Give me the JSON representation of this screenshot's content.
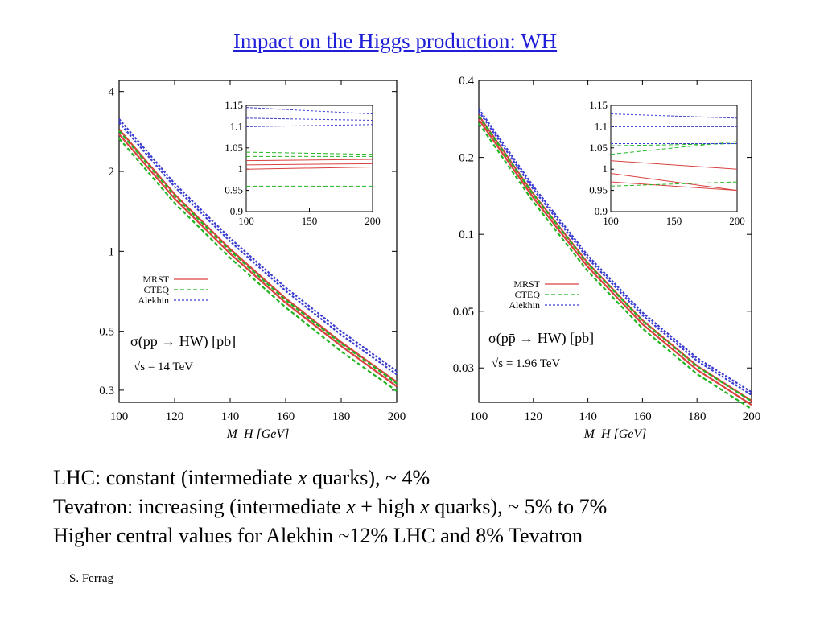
{
  "title": "Impact on the Higgs production: WH",
  "chart_data": [
    {
      "type": "line",
      "xlabel": "M_H [GeV]",
      "xlim": [
        100,
        200
      ],
      "ylim": [
        0.27,
        4.4
      ],
      "yscale": "log",
      "xticks": [
        "100",
        "120",
        "140",
        "160",
        "180",
        "200"
      ],
      "yticks": [
        {
          "value": 0.3,
          "label": "0.3"
        },
        {
          "value": 0.5,
          "label": "0.5"
        },
        {
          "value": 1,
          "label": "1"
        },
        {
          "value": 2,
          "label": "2"
        },
        {
          "value": 4,
          "label": "4"
        }
      ],
      "annotation": {
        "process": "σ(pp → HW) [pb]",
        "energy": "√s = 14 TeV"
      },
      "legend_placement": "middle-left",
      "series": [
        {
          "name": "MRST",
          "color": "#d94040",
          "dash": "solid",
          "x": [
            100,
            120,
            140,
            160,
            180,
            200
          ],
          "bands": [
            [
              2.76,
              1.58,
              0.98,
              0.64,
              0.44,
              0.31
            ],
            [
              2.88,
              1.64,
              1.02,
              0.665,
              0.455,
              0.322
            ]
          ]
        },
        {
          "name": "CTEQ",
          "color": "#22b522",
          "dash": "dashed",
          "x": [
            100,
            120,
            140,
            160,
            180,
            200
          ],
          "bands": [
            [
              2.66,
              1.52,
              0.945,
              0.615,
              0.42,
              0.298
            ],
            [
              2.84,
              1.62,
              1.005,
              0.655,
              0.45,
              0.318
            ]
          ]
        },
        {
          "name": "Alekhin",
          "color": "#3b3bd0",
          "dash": "dotted",
          "x": [
            100,
            120,
            140,
            160,
            180,
            200
          ],
          "bands": [
            [
              3.06,
              1.75,
              1.09,
              0.71,
              0.485,
              0.344
            ],
            [
              3.15,
              1.8,
              1.12,
              0.73,
              0.5,
              0.354
            ]
          ]
        }
      ],
      "inset": {
        "xlim": [
          100,
          200
        ],
        "ylim": [
          0.9,
          1.15
        ],
        "xticks": [
          "100",
          "150",
          "200"
        ],
        "yticks": [
          "0.9",
          "0.95",
          "1",
          "1.05",
          "1.1",
          "1.15"
        ],
        "series": [
          {
            "name": "MRST",
            "color": "#d94040",
            "dash": "solid",
            "x": [
              100,
              200
            ],
            "lines": [
              [
                1.02,
                1.023
              ],
              [
                1.0,
                1.005
              ],
              [
                1.01,
                1.013
              ]
            ]
          },
          {
            "name": "CTEQ",
            "color": "#22b522",
            "dash": "dashed",
            "x": [
              100,
              200
            ],
            "lines": [
              [
                1.04,
                1.035
              ],
              [
                0.96,
                0.96
              ],
              [
                1.03,
                1.03
              ]
            ]
          },
          {
            "name": "Alekhin",
            "color": "#3b3bd0",
            "dash": "dotted",
            "x": [
              100,
              200
            ],
            "lines": [
              [
                1.145,
                1.13
              ],
              [
                1.12,
                1.115
              ],
              [
                1.1,
                1.105
              ]
            ]
          }
        ]
      }
    },
    {
      "type": "line",
      "xlabel": "M_H [GeV]",
      "xlim": [
        100,
        200
      ],
      "ylim": [
        0.022,
        0.4
      ],
      "yscale": "log",
      "xticks": [
        "100",
        "120",
        "140",
        "160",
        "180",
        "200"
      ],
      "yticks": [
        {
          "value": 0.03,
          "label": "0.03"
        },
        {
          "value": 0.05,
          "label": "0.05"
        },
        {
          "value": 0.1,
          "label": "0.1"
        },
        {
          "value": 0.2,
          "label": "0.2"
        },
        {
          "value": 0.4,
          "label": "0.4"
        }
      ],
      "annotation": {
        "process": "σ(pp̄ → HW) [pb]",
        "energy": "√s = 1.96 TeV"
      },
      "legend_placement": "middle-left",
      "series": [
        {
          "name": "MRST",
          "color": "#d94040",
          "dash": "solid",
          "x": [
            100,
            120,
            140,
            160,
            180,
            200
          ],
          "bands": [
            [
              0.282,
              0.139,
              0.0745,
              0.0445,
              0.0295,
              0.0215
            ],
            [
              0.292,
              0.144,
              0.0772,
              0.0461,
              0.0306,
              0.0223
            ]
          ]
        },
        {
          "name": "CTEQ",
          "color": "#22b522",
          "dash": "dashed",
          "x": [
            100,
            120,
            140,
            160,
            180,
            200
          ],
          "bands": [
            [
              0.272,
              0.134,
              0.0717,
              0.0428,
              0.0284,
              0.0207
            ],
            [
              0.29,
              0.143,
              0.0766,
              0.0458,
              0.0304,
              0.0222
            ]
          ]
        },
        {
          "name": "Alekhin",
          "color": "#3b3bd0",
          "dash": "dotted",
          "x": [
            100,
            120,
            140,
            160,
            180,
            200
          ],
          "bands": [
            [
              0.303,
              0.15,
              0.0805,
              0.0482,
              0.032,
              0.0235
            ],
            [
              0.31,
              0.154,
              0.0825,
              0.0494,
              0.0328,
              0.0241
            ]
          ]
        }
      ],
      "inset": {
        "xlim": [
          100,
          200
        ],
        "ylim": [
          0.9,
          1.15
        ],
        "xticks": [
          "100",
          "150",
          "200"
        ],
        "yticks": [
          "0.9",
          "0.95",
          "1",
          "1.05",
          "1.1",
          "1.15"
        ],
        "series": [
          {
            "name": "MRST",
            "color": "#d94040",
            "dash": "solid",
            "x": [
              100,
              200
            ],
            "lines": [
              [
                1.02,
                1.0
              ],
              [
                0.99,
                0.95
              ],
              [
                0.97,
                0.95
              ]
            ]
          },
          {
            "name": "CTEQ",
            "color": "#22b522",
            "dash": "dashed",
            "x": [
              100,
              200
            ],
            "lines": [
              [
                1.035,
                1.065
              ],
              [
                0.96,
                0.97
              ],
              [
                1.055,
                1.06
              ]
            ]
          },
          {
            "name": "Alekhin",
            "color": "#3b3bd0",
            "dash": "dotted",
            "x": [
              100,
              200
            ],
            "lines": [
              [
                1.13,
                1.12
              ],
              [
                1.1,
                1.1
              ],
              [
                1.06,
                1.06
              ]
            ]
          }
        ]
      }
    }
  ],
  "bullets": {
    "line1": {
      "pre": "LHC: constant (intermediate ",
      "x": "x",
      "post": " quarks), ~ 4%"
    },
    "line2": {
      "pre": "Tevatron: increasing (intermediate ",
      "x1": "x",
      "mid": " + high ",
      "x2": "x",
      "post": " quarks),  ~ 5% to 7%"
    },
    "line3": "Higher central values for Alekhin  ~12% LHC and  8% Tevatron"
  },
  "author": "S. Ferrag"
}
